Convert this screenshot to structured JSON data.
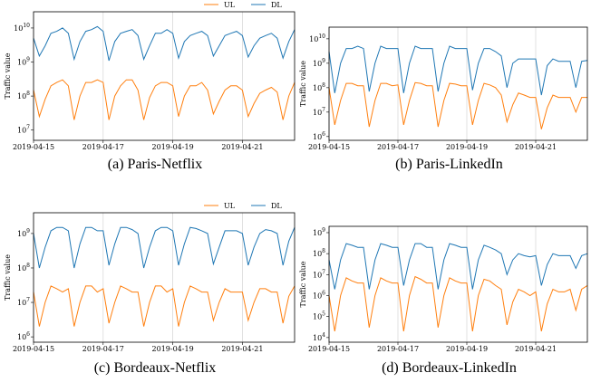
{
  "chart_data": [
    {
      "type": "line",
      "caption": "(a) Paris-Netflix",
      "ylabel": "Traffic value",
      "log_y": true,
      "x": [
        "2019-04-15T00:00",
        "2019-04-15T04:00",
        "2019-04-15T08:00",
        "2019-04-15T12:00",
        "2019-04-15T16:00",
        "2019-04-15T20:00",
        "2019-04-16T00:00",
        "2019-04-16T04:00",
        "2019-04-16T08:00",
        "2019-04-16T12:00",
        "2019-04-16T16:00",
        "2019-04-16T20:00",
        "2019-04-17T00:00",
        "2019-04-17T04:00",
        "2019-04-17T08:00",
        "2019-04-17T12:00",
        "2019-04-17T16:00",
        "2019-04-17T20:00",
        "2019-04-18T00:00",
        "2019-04-18T04:00",
        "2019-04-18T08:00",
        "2019-04-18T12:00",
        "2019-04-18T16:00",
        "2019-04-18T20:00",
        "2019-04-19T00:00",
        "2019-04-19T04:00",
        "2019-04-19T08:00",
        "2019-04-19T12:00",
        "2019-04-19T16:00",
        "2019-04-19T20:00",
        "2019-04-20T00:00",
        "2019-04-20T04:00",
        "2019-04-20T08:00",
        "2019-04-20T12:00",
        "2019-04-20T16:00",
        "2019-04-20T20:00",
        "2019-04-21T00:00",
        "2019-04-21T04:00",
        "2019-04-21T08:00",
        "2019-04-21T12:00",
        "2019-04-21T16:00",
        "2019-04-21T20:00",
        "2019-04-22T00:00",
        "2019-04-22T04:00",
        "2019-04-22T08:00",
        "2019-04-22T12:00"
      ],
      "xlim": [
        "2019-04-15T00:00",
        "2019-04-22T12:00"
      ],
      "xticks": [
        "2019-04-15",
        "2019-04-17",
        "2019-04-19",
        "2019-04-21"
      ],
      "ylim": [
        5000000.0,
        30000000000.0
      ],
      "yticks": [
        {
          "value": 10000000.0,
          "label": "10",
          "exponent": "7"
        },
        {
          "value": 100000000.0,
          "label": "10",
          "exponent": "8"
        },
        {
          "value": 1000000000.0,
          "label": "10",
          "exponent": "9"
        },
        {
          "value": 10000000000.0,
          "label": "10",
          "exponent": "10"
        }
      ],
      "series": [
        {
          "name": "UL",
          "color": "#ff7f0e",
          "values": [
            150000000.0,
            25000000.0,
            80000000.0,
            200000000.0,
            250000000.0,
            300000000.0,
            200000000.0,
            20000000.0,
            100000000.0,
            250000000.0,
            250000000.0,
            300000000.0,
            250000000.0,
            20000000.0,
            100000000.0,
            200000000.0,
            300000000.0,
            300000000.0,
            150000000.0,
            20000000.0,
            90000000.0,
            200000000.0,
            250000000.0,
            250000000.0,
            200000000.0,
            25000000.0,
            100000000.0,
            200000000.0,
            200000000.0,
            250000000.0,
            150000000.0,
            30000000.0,
            70000000.0,
            150000000.0,
            200000000.0,
            200000000.0,
            150000000.0,
            25000000.0,
            60000000.0,
            120000000.0,
            150000000.0,
            180000000.0,
            130000000.0,
            20000000.0,
            100000000.0,
            250000000.0
          ]
        },
        {
          "name": "DL",
          "color": "#1f77b4",
          "values": [
            5000000000.0,
            1500000000.0,
            3000000000.0,
            7000000000.0,
            8000000000.0,
            10000000000.0,
            7000000000.0,
            1200000000.0,
            4000000000.0,
            8000000000.0,
            9000000000.0,
            11000000000.0,
            8000000000.0,
            1100000000.0,
            4000000000.0,
            7000000000.0,
            8000000000.0,
            9000000000.0,
            6000000000.0,
            1200000000.0,
            3000000000.0,
            7000000000.0,
            7000000000.0,
            9000000000.0,
            7000000000.0,
            1300000000.0,
            4000000000.0,
            6000000000.0,
            7000000000.0,
            8000000000.0,
            6000000000.0,
            1500000000.0,
            3000000000.0,
            6000000000.0,
            7000000000.0,
            8000000000.0,
            6000000000.0,
            1400000000.0,
            3000000000.0,
            5000000000.0,
            6000000000.0,
            7000000000.0,
            5000000000.0,
            1300000000.0,
            4000000000.0,
            9000000000.0
          ]
        }
      ]
    },
    {
      "type": "line",
      "caption": "(b) Paris-LinkedIn",
      "ylabel": "Traffic value",
      "log_y": true,
      "x": [
        "2019-04-15T00:00",
        "2019-04-15T04:00",
        "2019-04-15T08:00",
        "2019-04-15T12:00",
        "2019-04-15T16:00",
        "2019-04-15T20:00",
        "2019-04-16T00:00",
        "2019-04-16T04:00",
        "2019-04-16T08:00",
        "2019-04-16T12:00",
        "2019-04-16T16:00",
        "2019-04-16T20:00",
        "2019-04-17T00:00",
        "2019-04-17T04:00",
        "2019-04-17T08:00",
        "2019-04-17T12:00",
        "2019-04-17T16:00",
        "2019-04-17T20:00",
        "2019-04-18T00:00",
        "2019-04-18T04:00",
        "2019-04-18T08:00",
        "2019-04-18T12:00",
        "2019-04-18T16:00",
        "2019-04-18T20:00",
        "2019-04-19T00:00",
        "2019-04-19T04:00",
        "2019-04-19T08:00",
        "2019-04-19T12:00",
        "2019-04-19T16:00",
        "2019-04-19T20:00",
        "2019-04-20T00:00",
        "2019-04-20T04:00",
        "2019-04-20T08:00",
        "2019-04-20T12:00",
        "2019-04-20T16:00",
        "2019-04-20T20:00",
        "2019-04-21T00:00",
        "2019-04-21T04:00",
        "2019-04-21T08:00",
        "2019-04-21T12:00",
        "2019-04-21T16:00",
        "2019-04-21T20:00",
        "2019-04-22T00:00",
        "2019-04-22T04:00",
        "2019-04-22T08:00",
        "2019-04-22T12:00"
      ],
      "xlim": [
        "2019-04-15T00:00",
        "2019-04-22T12:00"
      ],
      "xticks": [
        "2019-04-15",
        "2019-04-17",
        "2019-04-19",
        "2019-04-21"
      ],
      "ylim": [
        700000.0,
        30000000000.0
      ],
      "yticks": [
        {
          "value": 1000000.0,
          "label": "10",
          "exponent": "6"
        },
        {
          "value": 10000000.0,
          "label": "10",
          "exponent": "7"
        },
        {
          "value": 100000000.0,
          "label": "10",
          "exponent": "8"
        },
        {
          "value": 1000000000.0,
          "label": "10",
          "exponent": "9"
        },
        {
          "value": 10000000000.0,
          "label": "10",
          "exponent": "10"
        }
      ],
      "series": [
        {
          "color": "#ff7f0e",
          "values": [
            100000000.0,
            3000000.0,
            30000000.0,
            150000000.0,
            150000000.0,
            120000000.0,
            120000000.0,
            2500000.0,
            30000000.0,
            150000000.0,
            150000000.0,
            120000000.0,
            130000000.0,
            3000000.0,
            30000000.0,
            160000000.0,
            150000000.0,
            120000000.0,
            120000000.0,
            2500000.0,
            30000000.0,
            150000000.0,
            140000000.0,
            120000000.0,
            120000000.0,
            3000000.0,
            30000000.0,
            150000000.0,
            130000000.0,
            100000000.0,
            50000000.0,
            4000000.0,
            20000000.0,
            60000000.0,
            50000000.0,
            40000000.0,
            40000000.0,
            2000000.0,
            15000000.0,
            50000000.0,
            40000000.0,
            40000000.0,
            40000000.0,
            10000000.0,
            40000000.0,
            40000000.0
          ]
        },
        {
          "color": "#1f77b4",
          "values": [
            3000000000.0,
            60000000.0,
            1000000000.0,
            4000000000.0,
            4000000000.0,
            5000000000.0,
            4000000000.0,
            70000000.0,
            1000000000.0,
            5000000000.0,
            4000000000.0,
            4000000000.0,
            4000000000.0,
            60000000.0,
            1000000000.0,
            5000000000.0,
            4000000000.0,
            4000000000.0,
            4000000000.0,
            70000000.0,
            1000000000.0,
            5000000000.0,
            4000000000.0,
            4000000000.0,
            4000000000.0,
            80000000.0,
            1000000000.0,
            4000000000.0,
            4000000000.0,
            3000000000.0,
            2000000000.0,
            100000000.0,
            1000000000.0,
            1500000000.0,
            1500000000.0,
            1500000000.0,
            1500000000.0,
            50000000.0,
            800000000.0,
            1500000000.0,
            1200000000.0,
            1200000000.0,
            1200000000.0,
            100000000.0,
            1200000000.0,
            1300000000.0
          ]
        }
      ]
    },
    {
      "type": "line",
      "caption": "(c) Bordeaux-Netflix",
      "ylabel": "Traffic value",
      "log_y": true,
      "x": [
        "2019-04-15T00:00",
        "2019-04-15T04:00",
        "2019-04-15T08:00",
        "2019-04-15T12:00",
        "2019-04-15T16:00",
        "2019-04-15T20:00",
        "2019-04-16T00:00",
        "2019-04-16T04:00",
        "2019-04-16T08:00",
        "2019-04-16T12:00",
        "2019-04-16T16:00",
        "2019-04-16T20:00",
        "2019-04-17T00:00",
        "2019-04-17T04:00",
        "2019-04-17T08:00",
        "2019-04-17T12:00",
        "2019-04-17T16:00",
        "2019-04-17T20:00",
        "2019-04-18T00:00",
        "2019-04-18T04:00",
        "2019-04-18T08:00",
        "2019-04-18T12:00",
        "2019-04-18T16:00",
        "2019-04-18T20:00",
        "2019-04-19T00:00",
        "2019-04-19T04:00",
        "2019-04-19T08:00",
        "2019-04-19T12:00",
        "2019-04-19T16:00",
        "2019-04-19T20:00",
        "2019-04-20T00:00",
        "2019-04-20T04:00",
        "2019-04-20T08:00",
        "2019-04-20T12:00",
        "2019-04-20T16:00",
        "2019-04-20T20:00",
        "2019-04-21T00:00",
        "2019-04-21T04:00",
        "2019-04-21T08:00",
        "2019-04-21T12:00",
        "2019-04-21T16:00",
        "2019-04-21T20:00",
        "2019-04-22T00:00",
        "2019-04-22T04:00",
        "2019-04-22T08:00",
        "2019-04-22T12:00"
      ],
      "xlim": [
        "2019-04-15T00:00",
        "2019-04-22T12:00"
      ],
      "xticks": [
        "2019-04-15",
        "2019-04-17",
        "2019-04-19",
        "2019-04-21"
      ],
      "ylim": [
        700000.0,
        4000000000.0
      ],
      "yticks": [
        {
          "value": 1000000.0,
          "label": "10",
          "exponent": "6"
        },
        {
          "value": 10000000.0,
          "label": "10",
          "exponent": "7"
        },
        {
          "value": 100000000.0,
          "label": "10",
          "exponent": "8"
        },
        {
          "value": 1000000000.0,
          "label": "10",
          "exponent": "9"
        }
      ],
      "series": [
        {
          "name": "UL",
          "color": "#ff7f0e",
          "values": [
            20000000.0,
            2000000.0,
            10000000.0,
            30000000.0,
            25000000.0,
            20000000.0,
            25000000.0,
            2000000.0,
            10000000.0,
            30000000.0,
            30000000.0,
            20000000.0,
            25000000.0,
            2500000.0,
            10000000.0,
            30000000.0,
            25000000.0,
            20000000.0,
            20000000.0,
            2000000.0,
            10000000.0,
            30000000.0,
            30000000.0,
            20000000.0,
            25000000.0,
            2000000.0,
            10000000.0,
            30000000.0,
            25000000.0,
            20000000.0,
            20000000.0,
            3000000.0,
            10000000.0,
            25000000.0,
            20000000.0,
            20000000.0,
            20000000.0,
            3000000.0,
            10000000.0,
            25000000.0,
            25000000.0,
            20000000.0,
            20000000.0,
            2500000.0,
            15000000.0,
            30000000.0
          ]
        },
        {
          "name": "DL",
          "color": "#1f77b4",
          "values": [
            1000000000.0,
            100000000.0,
            400000000.0,
            1200000000.0,
            1500000000.0,
            1500000000.0,
            1200000000.0,
            100000000.0,
            500000000.0,
            1500000000.0,
            1500000000.0,
            1200000000.0,
            1200000000.0,
            120000000.0,
            500000000.0,
            1500000000.0,
            1500000000.0,
            1300000000.0,
            1000000000.0,
            100000000.0,
            400000000.0,
            1200000000.0,
            1500000000.0,
            1500000000.0,
            1200000000.0,
            120000000.0,
            500000000.0,
            1500000000.0,
            1400000000.0,
            1200000000.0,
            1000000000.0,
            130000000.0,
            400000000.0,
            1200000000.0,
            1200000000.0,
            1200000000.0,
            1000000000.0,
            120000000.0,
            400000000.0,
            1000000000.0,
            1300000000.0,
            1200000000.0,
            1000000000.0,
            120000000.0,
            600000000.0,
            1500000000.0
          ]
        }
      ]
    },
    {
      "type": "line",
      "caption": "(d) Bordeaux-LinkedIn",
      "ylabel": "Traffic value",
      "log_y": true,
      "x": [
        "2019-04-15T00:00",
        "2019-04-15T04:00",
        "2019-04-15T08:00",
        "2019-04-15T12:00",
        "2019-04-15T16:00",
        "2019-04-15T20:00",
        "2019-04-16T00:00",
        "2019-04-16T04:00",
        "2019-04-16T08:00",
        "2019-04-16T12:00",
        "2019-04-16T16:00",
        "2019-04-16T20:00",
        "2019-04-17T00:00",
        "2019-04-17T04:00",
        "2019-04-17T08:00",
        "2019-04-17T12:00",
        "2019-04-17T16:00",
        "2019-04-17T20:00",
        "2019-04-18T00:00",
        "2019-04-18T04:00",
        "2019-04-18T08:00",
        "2019-04-18T12:00",
        "2019-04-18T16:00",
        "2019-04-18T20:00",
        "2019-04-19T00:00",
        "2019-04-19T04:00",
        "2019-04-19T08:00",
        "2019-04-19T12:00",
        "2019-04-19T16:00",
        "2019-04-19T20:00",
        "2019-04-20T00:00",
        "2019-04-20T04:00",
        "2019-04-20T08:00",
        "2019-04-20T12:00",
        "2019-04-20T16:00",
        "2019-04-20T20:00",
        "2019-04-21T00:00",
        "2019-04-21T04:00",
        "2019-04-21T08:00",
        "2019-04-21T12:00",
        "2019-04-21T16:00",
        "2019-04-21T20:00",
        "2019-04-22T00:00",
        "2019-04-22T04:00",
        "2019-04-22T08:00",
        "2019-04-22T12:00"
      ],
      "xlim": [
        "2019-04-15T00:00",
        "2019-04-22T12:00"
      ],
      "xticks": [
        "2019-04-15",
        "2019-04-17",
        "2019-04-19",
        "2019-04-21"
      ],
      "ylim": [
        6000.0,
        2000000000.0
      ],
      "yticks": [
        {
          "value": 10000.0,
          "label": "10",
          "exponent": "4"
        },
        {
          "value": 100000.0,
          "label": "10",
          "exponent": "5"
        },
        {
          "value": 1000000.0,
          "label": "10",
          "exponent": "6"
        },
        {
          "value": 10000000.0,
          "label": "10",
          "exponent": "7"
        },
        {
          "value": 100000000.0,
          "label": "10",
          "exponent": "8"
        },
        {
          "value": 1000000000.0,
          "label": "10",
          "exponent": "9"
        }
      ],
      "series": [
        {
          "color": "#ff7f0e",
          "values": [
            1000000.0,
            20000.0,
            1000000.0,
            7000000.0,
            5000000.0,
            4000000.0,
            4000000.0,
            30000.0,
            1000000.0,
            7000000.0,
            5000000.0,
            4000000.0,
            4000000.0,
            20000.0,
            1000000.0,
            8000000.0,
            6000000.0,
            4000000.0,
            4000000.0,
            30000.0,
            1000000.0,
            7000000.0,
            5000000.0,
            4000000.0,
            4000000.0,
            20000.0,
            1000000.0,
            6000000.0,
            5000000.0,
            3000000.0,
            2000000.0,
            40000.0,
            500000.0,
            2000000.0,
            1500000.0,
            1000000.0,
            1500000.0,
            20000.0,
            400000.0,
            2000000.0,
            1500000.0,
            1500000.0,
            2000000.0,
            200000.0,
            2000000.0,
            3000000.0
          ]
        },
        {
          "color": "#1f77b4",
          "values": [
            50000000.0,
            2000000.0,
            50000000.0,
            300000000.0,
            250000000.0,
            200000000.0,
            200000000.0,
            2000000.0,
            50000000.0,
            300000000.0,
            250000000.0,
            200000000.0,
            200000000.0,
            3000000.0,
            50000000.0,
            300000000.0,
            300000000.0,
            200000000.0,
            200000000.0,
            2000000.0,
            50000000.0,
            300000000.0,
            250000000.0,
            200000000.0,
            200000000.0,
            2000000.0,
            50000000.0,
            250000000.0,
            200000000.0,
            150000000.0,
            100000000.0,
            10000000.0,
            50000000.0,
            100000000.0,
            80000000.0,
            70000000.0,
            80000000.0,
            3000000.0,
            30000000.0,
            100000000.0,
            80000000.0,
            80000000.0,
            80000000.0,
            20000000.0,
            80000000.0,
            100000000.0
          ]
        }
      ]
    }
  ]
}
